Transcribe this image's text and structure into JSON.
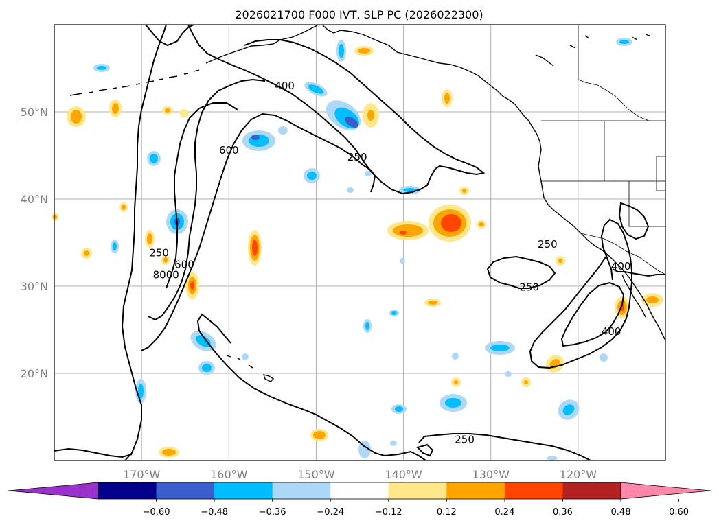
{
  "title": "2026021700 F000 IVT, SLP PC (2026022300)",
  "chart_data": {
    "type": "contour-map",
    "title": "2026021700 F000 IVT, SLP PC (2026022300)",
    "xlabel": "",
    "ylabel": "",
    "grid": true,
    "lon_range": [
      -180,
      -110
    ],
    "lat_range": [
      10,
      60
    ],
    "lon_ticks": [
      "170°W",
      "160°W",
      "150°W",
      "140°W",
      "130°W",
      "120°W"
    ],
    "lon_tick_values": [
      -170,
      -160,
      -150,
      -140,
      -130,
      -120
    ],
    "lat_ticks": [
      "20°N",
      "30°N",
      "40°N",
      "50°N"
    ],
    "lat_tick_values": [
      20,
      30,
      40,
      50
    ],
    "contour_labels": [
      {
        "text": "400",
        "lon": -153.6,
        "lat": 53.0
      },
      {
        "text": "250",
        "lon": -145.3,
        "lat": 44.8
      },
      {
        "text": "600",
        "lon": -160.0,
        "lat": 45.6
      },
      {
        "text": "250",
        "lon": -168.0,
        "lat": 33.8
      },
      {
        "text": "8000",
        "lon": -167.2,
        "lat": 31.3
      },
      {
        "text": "600",
        "lon": -165.1,
        "lat": 32.5
      },
      {
        "text": "250",
        "lon": -123.5,
        "lat": 34.8
      },
      {
        "text": "400",
        "lon": -115.1,
        "lat": 32.3
      },
      {
        "text": "250",
        "lon": -125.6,
        "lat": 29.9
      },
      {
        "text": "400",
        "lon": -116.2,
        "lat": 24.8
      },
      {
        "text": "250",
        "lon": -133.0,
        "lat": 12.4
      }
    ],
    "colorbar": {
      "colors": [
        "#9932cc",
        "#00008b",
        "#3a5fcd",
        "#00bfff",
        "#add8f7",
        "#ffffff",
        "#ffe78a",
        "#ffa500",
        "#ff4500",
        "#b22222",
        "#ff88a8"
      ],
      "levels": [
        "−0.60",
        "−0.48",
        "−0.36",
        "−0.24",
        "−0.12",
        "0.12",
        "0.24",
        "0.36",
        "0.48",
        "0.60"
      ],
      "level_values": [
        -0.6,
        -0.48,
        -0.36,
        -0.24,
        -0.12,
        0.12,
        0.24,
        0.36,
        0.48,
        0.6
      ],
      "extend": "both"
    }
  }
}
